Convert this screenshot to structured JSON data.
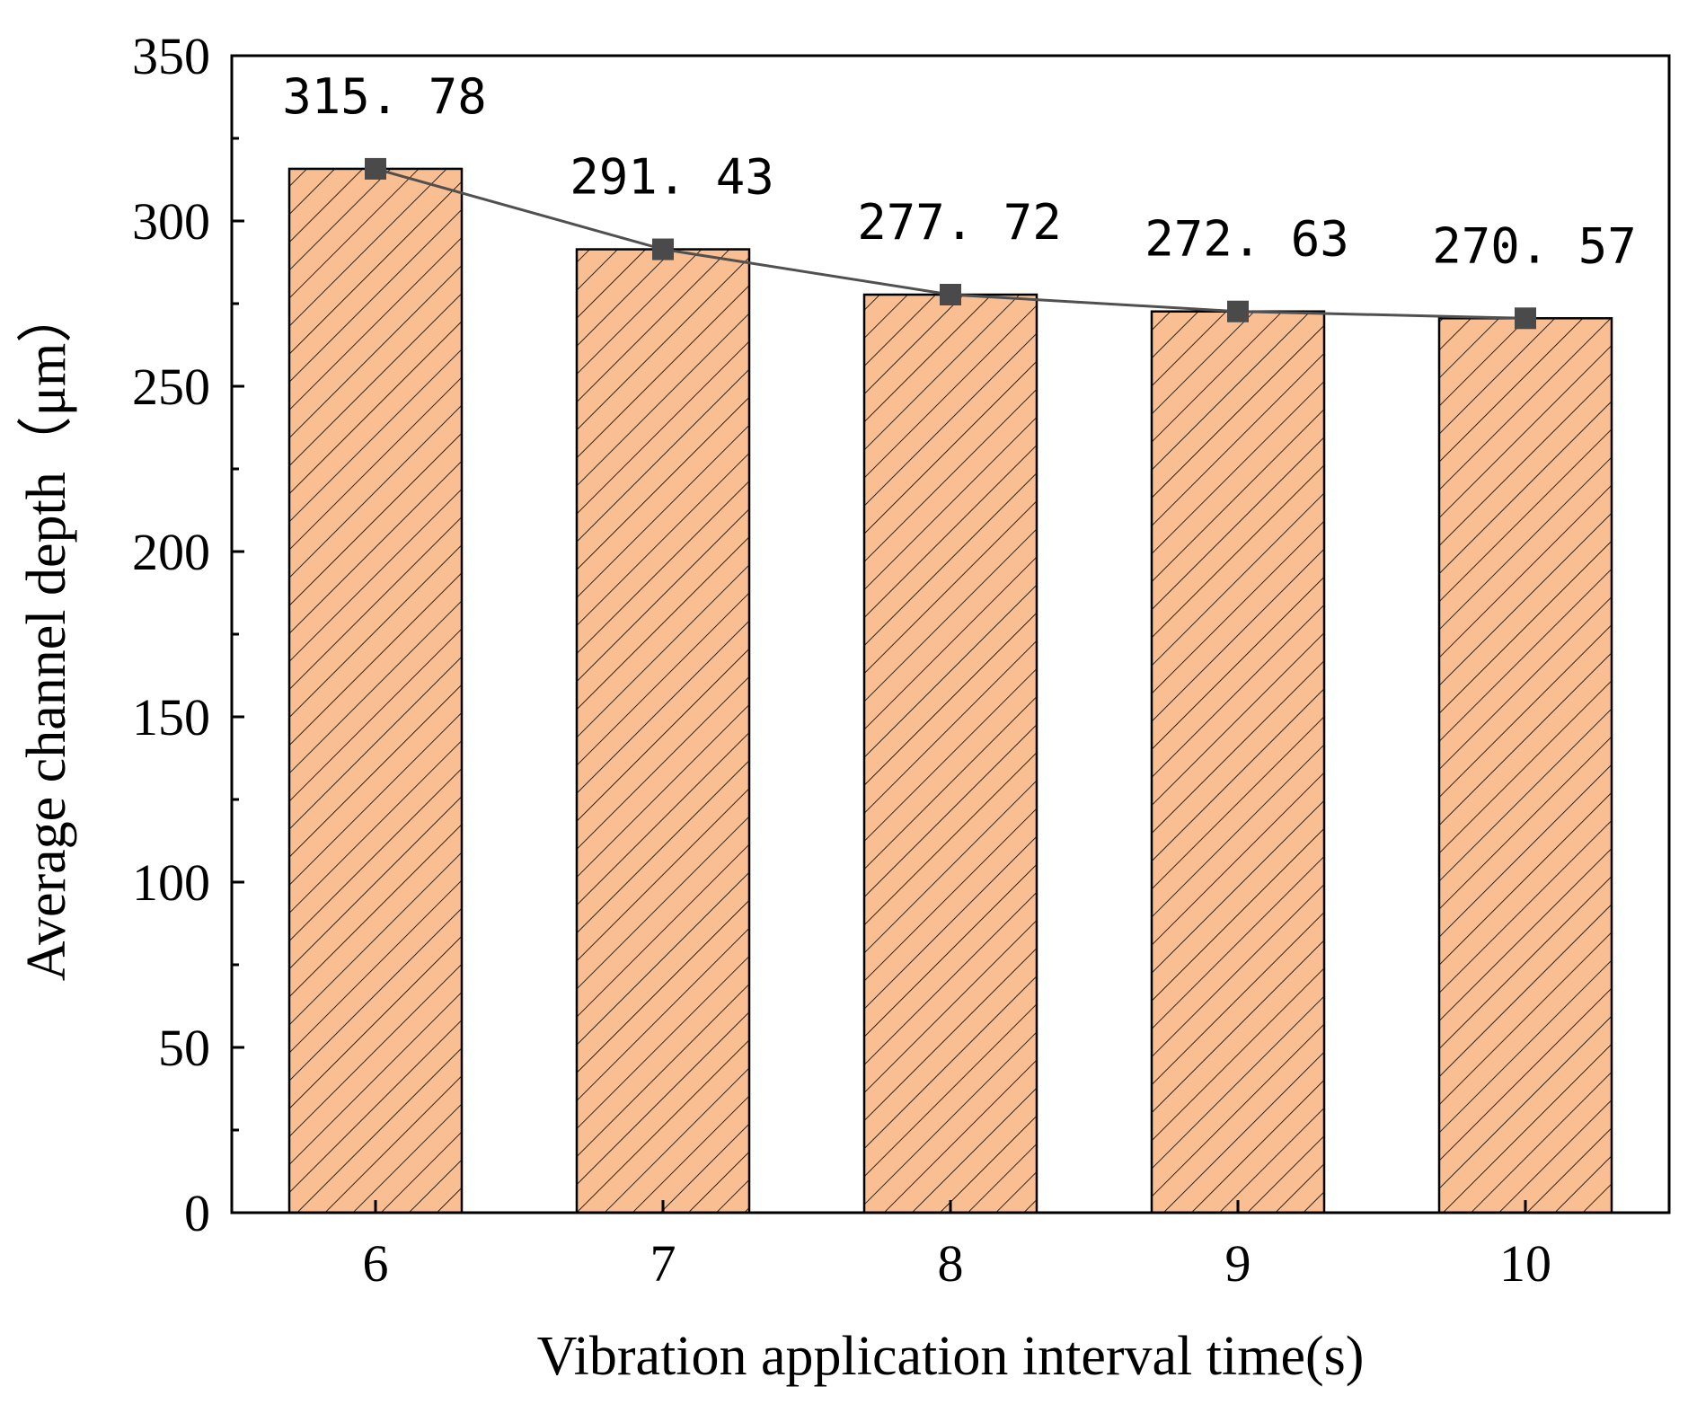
{
  "chart_data": {
    "type": "bar",
    "xlabel": "Vibration application interval time(s)",
    "ylabel": "Average channel depth（μm）",
    "categories": [
      "6",
      "7",
      "8",
      "9",
      "10"
    ],
    "values": [
      315.78,
      291.43,
      277.72,
      272.63,
      270.57
    ],
    "data_labels": [
      "315. 78",
      "291. 43",
      "277. 72",
      "272. 63",
      "270. 57"
    ],
    "ylim": [
      0,
      350
    ],
    "yticks": [
      0,
      50,
      100,
      150,
      200,
      250,
      300,
      350
    ],
    "overlay": "line-with-square-markers",
    "grid": false,
    "legend": "none"
  },
  "colors": {
    "bar_fill": "#F9BE92",
    "hatch": "#000000",
    "line": "#505050",
    "marker": "#4A4A4A",
    "axis": "#000000"
  }
}
